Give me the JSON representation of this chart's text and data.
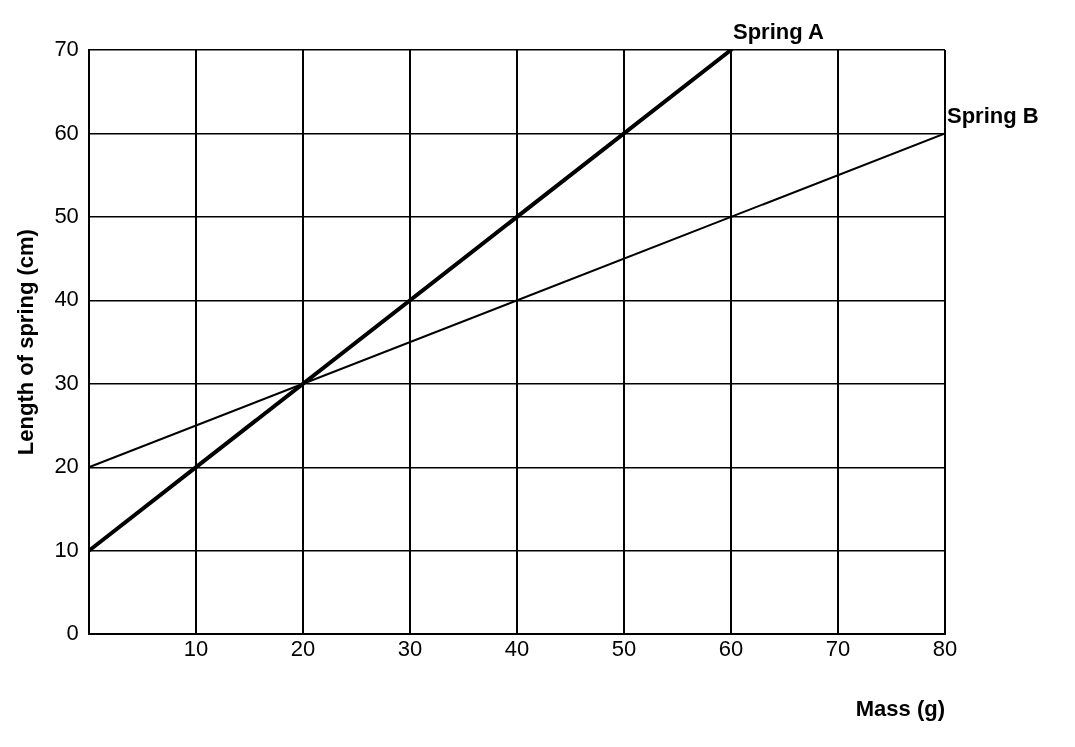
{
  "chart_data": {
    "type": "line",
    "xlabel": "Mass (g)",
    "ylabel": "Length of spring (cm)",
    "series": [
      {
        "name": "Spring A",
        "color": "#000000",
        "x": [
          0,
          60
        ],
        "values": [
          10,
          70
        ]
      },
      {
        "name": "Spring B",
        "color": "#000000",
        "x": [
          0,
          80
        ],
        "values": [
          20,
          60
        ]
      }
    ],
    "xlim": [
      0,
      80
    ],
    "xticks": [
      {
        "value": 0,
        "label": null
      },
      10,
      20,
      30,
      40,
      50,
      60,
      70,
      80
    ],
    "ylim": [
      0,
      70
    ],
    "yticks": [
      0,
      10,
      20,
      30,
      40,
      50,
      60,
      70
    ],
    "grid": true,
    "legend": false,
    "marker": "none",
    "line_style": "solid"
  }
}
